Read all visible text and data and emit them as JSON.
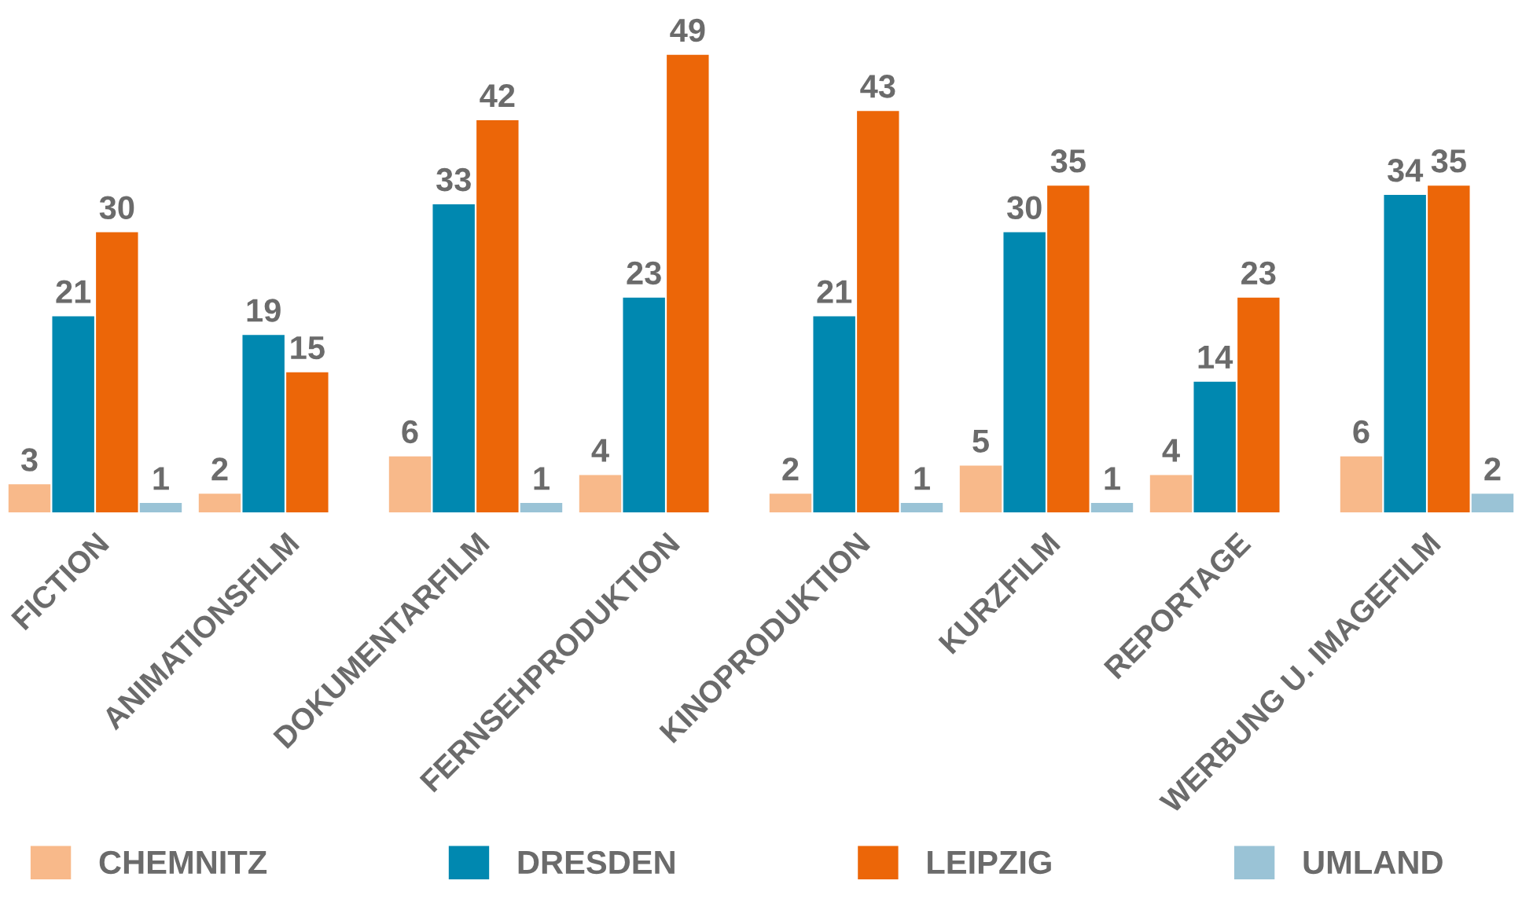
{
  "chart_data": {
    "type": "bar",
    "categories": [
      "FICTION",
      "ANIMATIONSFILM",
      "DOKUMENTARFILM",
      "FERNSEHPRODUKTION",
      "KINOPRODUKTION",
      "KURZFILM",
      "REPORTAGE",
      "WERBUNG U. IMAGEFILM"
    ],
    "series": [
      {
        "name": "CHEMNITZ",
        "color": "#f8b98a",
        "values": [
          3,
          2,
          6,
          4,
          2,
          5,
          4,
          6
        ]
      },
      {
        "name": "DRESDEN",
        "color": "#0088b0",
        "values": [
          21,
          19,
          33,
          23,
          21,
          30,
          14,
          34
        ]
      },
      {
        "name": "LEIPZIG",
        "color": "#ec6608",
        "values": [
          30,
          15,
          42,
          49,
          43,
          35,
          23,
          35
        ]
      },
      {
        "name": "UMLAND",
        "color": "#9ac3d6",
        "values": [
          1,
          null,
          1,
          null,
          1,
          1,
          null,
          2
        ]
      }
    ],
    "data_labels": true,
    "legend": "bottom left",
    "grid": false
  }
}
